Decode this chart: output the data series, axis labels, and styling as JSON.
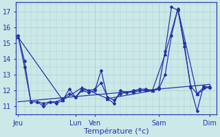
{
  "background_color": "#cce8e8",
  "grid_color": "#aacccc",
  "line_color": "#2233aa",
  "xlabel": "Température (°c)",
  "x_tick_labels": [
    "Jeu",
    "Lun",
    "Ven",
    "Sam",
    "Dim"
  ],
  "x_tick_positions": [
    0,
    9,
    12,
    22,
    30
  ],
  "xlim": [
    -0.3,
    31.0
  ],
  "ylim": [
    10.5,
    17.6
  ],
  "yticks": [
    11,
    12,
    13,
    14,
    15,
    16,
    17
  ],
  "series": [
    {
      "x": [
        0,
        1,
        2,
        3,
        4,
        5,
        6,
        7,
        8,
        9,
        10,
        11,
        12,
        13,
        14,
        15,
        16,
        17,
        18,
        19,
        20,
        21,
        22,
        23,
        24,
        25,
        26,
        27,
        28,
        29,
        30
      ],
      "y": [
        15.5,
        13.9,
        11.3,
        11.3,
        11.0,
        11.3,
        11.2,
        11.4,
        12.1,
        11.6,
        12.0,
        11.9,
        12.0,
        13.3,
        11.5,
        11.2,
        12.0,
        11.9,
        12.0,
        12.1,
        12.1,
        12.0,
        12.2,
        14.5,
        17.3,
        17.1,
        15.0,
        12.2,
        10.7,
        12.3,
        12.2
      ],
      "marker": "D",
      "markersize": 2.0,
      "linewidth": 0.9
    },
    {
      "x": [
        0,
        1,
        2,
        3,
        4,
        5,
        6,
        7,
        8,
        9,
        10,
        11,
        12,
        13,
        14,
        15,
        16,
        17,
        18,
        19,
        20,
        21,
        22,
        23,
        24,
        25,
        26,
        27,
        28,
        29,
        30
      ],
      "y": [
        15.5,
        13.5,
        11.3,
        11.3,
        11.2,
        11.3,
        11.3,
        11.5,
        11.8,
        11.6,
        12.1,
        12.0,
        12.1,
        12.5,
        11.6,
        11.4,
        11.8,
        11.9,
        11.9,
        12.0,
        12.0,
        12.0,
        12.1,
        13.0,
        15.5,
        17.2,
        14.8,
        12.3,
        11.8,
        12.2,
        12.2
      ],
      "marker": "D",
      "markersize": 2.0,
      "linewidth": 0.9
    },
    {
      "x": [
        0,
        7,
        10,
        14,
        21,
        23,
        25,
        28,
        30
      ],
      "y": [
        15.4,
        11.4,
        12.2,
        11.5,
        12.0,
        14.3,
        17.2,
        11.8,
        12.3
      ],
      "marker": "^",
      "markersize": 3.0,
      "linewidth": 0.9
    },
    {
      "x": [
        0,
        30
      ],
      "y": [
        11.3,
        12.4
      ],
      "marker": null,
      "markersize": 0,
      "linewidth": 0.9
    }
  ]
}
